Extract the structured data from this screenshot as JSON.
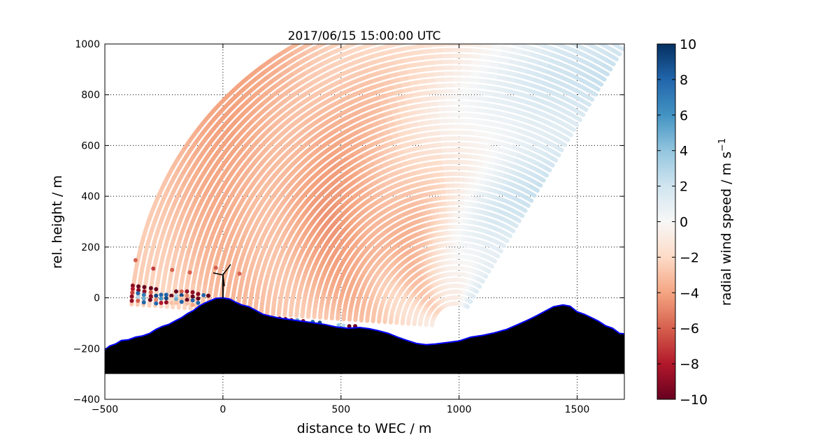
{
  "chart_data": {
    "type": "scatter",
    "title": "2017/06/15 15:00:00 UTC",
    "xlabel": "distance to WEC / m",
    "ylabel": "rel. height / m",
    "xlim": [
      -500,
      1700
    ],
    "ylim": [
      -400,
      1000
    ],
    "xticks": [
      -500,
      0,
      500,
      1000,
      1500
    ],
    "xtick_labels": [
      "−500",
      "0",
      "500",
      "1000",
      "1500"
    ],
    "yticks": [
      -400,
      -200,
      0,
      200,
      400,
      600,
      800,
      1000
    ],
    "ytick_labels": [
      "−400",
      "−200",
      "0",
      "200",
      "400",
      "600",
      "800",
      "1000"
    ],
    "grid": true,
    "colorbar": {
      "label": "radial wind speed / m s",
      "label_superscript": "−1",
      "range": [
        -10,
        10
      ],
      "ticks": [
        10,
        8,
        6,
        4,
        2,
        0,
        -2,
        -4,
        -6,
        -8,
        -10
      ],
      "tick_labels": [
        "10",
        "8",
        "6",
        "4",
        "2",
        "0",
        "−2",
        "−4",
        "−6",
        "−8",
        "−10"
      ],
      "colormap": [
        "#67001f",
        "#b2182b",
        "#d6604d",
        "#f4a582",
        "#fddbc7",
        "#f7f7f7",
        "#d1e5f0",
        "#92c5de",
        "#4393c3",
        "#2166ac",
        "#053061"
      ]
    },
    "radar_scan": {
      "origin": [
        985,
        -115
      ],
      "range_min_m": 100,
      "range_max_m": 1375,
      "gate_spacing_m": 25,
      "angle_min_deg": 59,
      "angle_max_deg": 176,
      "velocity_by_angle": [
        [
          59,
          1.8
        ],
        [
          70,
          1.4
        ],
        [
          80,
          0.4
        ],
        [
          90,
          -0.6
        ],
        [
          100,
          -1.5
        ],
        [
          110,
          -2.5
        ],
        [
          125,
          -3.4
        ],
        [
          140,
          -3.6
        ],
        [
          155,
          -3.2
        ],
        [
          170,
          -2.8
        ],
        [
          176,
          -2.6
        ]
      ]
    },
    "clutter_points": [
      [
        -382,
        48,
        -9
      ],
      [
        -382,
        35,
        -8
      ],
      [
        -384,
        20,
        -7
      ],
      [
        -386,
        5,
        -9
      ],
      [
        -386,
        -12,
        -9
      ],
      [
        -358,
        45,
        -10
      ],
      [
        -358,
        30,
        -9
      ],
      [
        -360,
        18,
        8
      ],
      [
        -360,
        2,
        3
      ],
      [
        -360,
        -12,
        -6
      ],
      [
        -333,
        42,
        -10
      ],
      [
        -333,
        25,
        -9
      ],
      [
        -335,
        12,
        7
      ],
      [
        -335,
        -3,
        5
      ],
      [
        -335,
        -18,
        8
      ],
      [
        -305,
        38,
        -10
      ],
      [
        -305,
        22,
        -6
      ],
      [
        -305,
        6,
        -9
      ],
      [
        -308,
        -8,
        -10
      ],
      [
        -283,
        34,
        -10
      ],
      [
        -283,
        8,
        9
      ],
      [
        -283,
        -8,
        -5
      ],
      [
        -283,
        -22,
        8
      ],
      [
        -262,
        12,
        8
      ],
      [
        -262,
        -3,
        6
      ],
      [
        -262,
        -20,
        -8
      ],
      [
        -240,
        12,
        8
      ],
      [
        -240,
        -2,
        9
      ],
      [
        -240,
        -18,
        -9
      ],
      [
        -218,
        8,
        -10
      ],
      [
        -218,
        -5,
        -2
      ],
      [
        -218,
        -20,
        -3
      ],
      [
        -198,
        25,
        -10
      ],
      [
        -198,
        8,
        3
      ],
      [
        -198,
        -5,
        5
      ],
      [
        -198,
        -20,
        -3
      ],
      [
        -175,
        25,
        -6
      ],
      [
        -175,
        10,
        9
      ],
      [
        -175,
        -3,
        -3
      ],
      [
        -175,
        -16,
        8
      ],
      [
        -152,
        25,
        -9
      ],
      [
        -152,
        8,
        -5
      ],
      [
        -152,
        -8,
        -10
      ],
      [
        -152,
        -22,
        -3
      ],
      [
        -128,
        22,
        -9
      ],
      [
        -128,
        5,
        -10
      ],
      [
        -128,
        -10,
        8
      ],
      [
        -128,
        -28,
        -4
      ],
      [
        -105,
        15,
        -9
      ],
      [
        -105,
        -3,
        -10
      ],
      [
        -105,
        -20,
        8
      ],
      [
        -82,
        10,
        8
      ],
      [
        -62,
        8,
        -10
      ],
      [
        -370,
        148,
        -6
      ],
      [
        -295,
        115,
        -7
      ],
      [
        -215,
        110,
        -6
      ],
      [
        -140,
        100,
        -6
      ],
      [
        -30,
        118,
        -6
      ],
      [
        70,
        95,
        -6
      ],
      [
        185,
        -78,
        -10
      ],
      [
        215,
        -82,
        -9
      ],
      [
        240,
        -82,
        -10
      ],
      [
        265,
        -84,
        -10
      ],
      [
        290,
        -88,
        -10
      ],
      [
        315,
        -88,
        5
      ],
      [
        340,
        -92,
        -9
      ],
      [
        380,
        -95,
        8
      ],
      [
        410,
        -98,
        9
      ],
      [
        490,
        -108,
        4
      ],
      [
        510,
        -110,
        3
      ],
      [
        535,
        -112,
        -10
      ],
      [
        560,
        -112,
        -10
      ]
    ],
    "terrain": [
      [
        -500,
        -205
      ],
      [
        -480,
        -190
      ],
      [
        -455,
        -182
      ],
      [
        -430,
        -168
      ],
      [
        -400,
        -165
      ],
      [
        -370,
        -155
      ],
      [
        -340,
        -150
      ],
      [
        -310,
        -140
      ],
      [
        -285,
        -125
      ],
      [
        -255,
        -112
      ],
      [
        -230,
        -105
      ],
      [
        -200,
        -90
      ],
      [
        -175,
        -78
      ],
      [
        -150,
        -62
      ],
      [
        -125,
        -50
      ],
      [
        -100,
        -32
      ],
      [
        -75,
        -20
      ],
      [
        -50,
        -10
      ],
      [
        -30,
        -2
      ],
      [
        0,
        0
      ],
      [
        30,
        -5
      ],
      [
        55,
        -18
      ],
      [
        80,
        -28
      ],
      [
        110,
        -35
      ],
      [
        140,
        -50
      ],
      [
        170,
        -65
      ],
      [
        200,
        -72
      ],
      [
        240,
        -80
      ],
      [
        280,
        -85
      ],
      [
        330,
        -92
      ],
      [
        380,
        -98
      ],
      [
        430,
        -105
      ],
      [
        480,
        -115
      ],
      [
        530,
        -120
      ],
      [
        580,
        -117
      ],
      [
        620,
        -122
      ],
      [
        660,
        -130
      ],
      [
        700,
        -140
      ],
      [
        740,
        -155
      ],
      [
        780,
        -168
      ],
      [
        820,
        -180
      ],
      [
        860,
        -185
      ],
      [
        900,
        -182
      ],
      [
        950,
        -176
      ],
      [
        1000,
        -170
      ],
      [
        1050,
        -155
      ],
      [
        1100,
        -148
      ],
      [
        1150,
        -138
      ],
      [
        1200,
        -125
      ],
      [
        1250,
        -105
      ],
      [
        1290,
        -88
      ],
      [
        1330,
        -70
      ],
      [
        1370,
        -50
      ],
      [
        1400,
        -35
      ],
      [
        1440,
        -28
      ],
      [
        1470,
        -33
      ],
      [
        1500,
        -55
      ],
      [
        1530,
        -65
      ],
      [
        1560,
        -78
      ],
      [
        1590,
        -92
      ],
      [
        1620,
        -110
      ],
      [
        1650,
        -120
      ],
      [
        1680,
        -140
      ],
      [
        1700,
        -142
      ]
    ],
    "terrain_base": -300,
    "turbine": {
      "x": 0,
      "hub_height": 90
    }
  }
}
